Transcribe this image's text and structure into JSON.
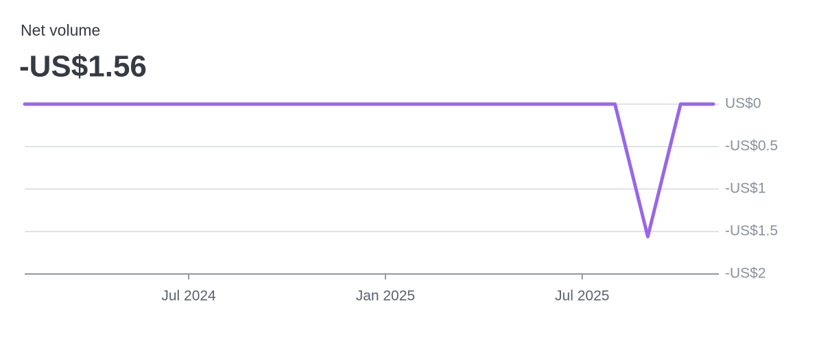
{
  "chart_data": {
    "type": "line",
    "title": "Net volume",
    "headline": "-US$1.56",
    "x": [
      "2024-02",
      "2024-03",
      "2024-04",
      "2024-05",
      "2024-06",
      "2024-07",
      "2024-08",
      "2024-09",
      "2024-10",
      "2024-11",
      "2024-12",
      "2025-01",
      "2025-02",
      "2025-03",
      "2025-04",
      "2025-05",
      "2025-06",
      "2025-07",
      "2025-08",
      "2025-09",
      "2025-10",
      "2025-11"
    ],
    "series": [
      {
        "name": "Net volume",
        "color": "#9966e8",
        "values": [
          0,
          0,
          0,
          0,
          0,
          0,
          0,
          0,
          0,
          0,
          0,
          0,
          0,
          0,
          0,
          0,
          0,
          0,
          0,
          -1.56,
          0,
          0
        ]
      }
    ],
    "xlim": [
      "2024-02",
      "2025-11"
    ],
    "xticks": [
      {
        "value": "2024-07",
        "label": "Jul 2024"
      },
      {
        "value": "2025-01",
        "label": "Jan 2025"
      },
      {
        "value": "2025-07",
        "label": "Jul 2025"
      }
    ],
    "ylim": [
      -2,
      0
    ],
    "yticks": [
      {
        "value": 0,
        "label": "US$0"
      },
      {
        "value": -0.5,
        "label": "-US$0.5"
      },
      {
        "value": -1,
        "label": "-US$1"
      },
      {
        "value": -1.5,
        "label": "-US$1.5"
      },
      {
        "value": -2,
        "label": "-US$2"
      }
    ],
    "grid": true
  }
}
